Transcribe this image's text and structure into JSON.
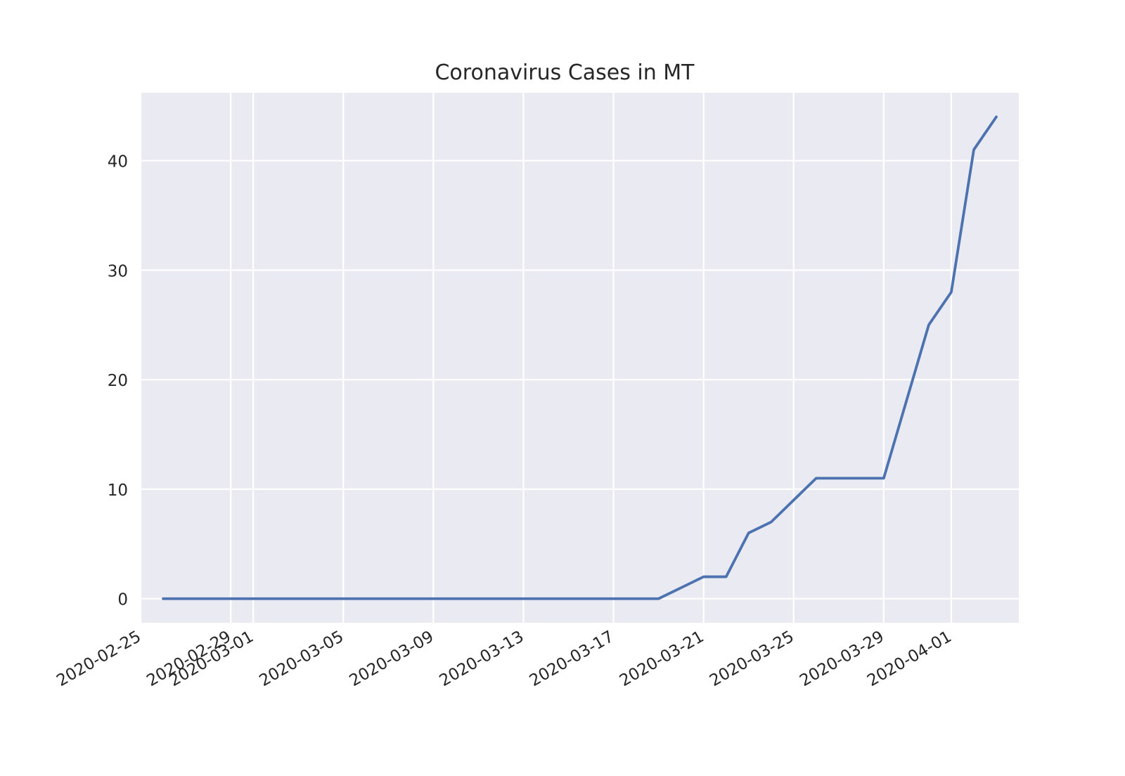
{
  "chart_data": {
    "type": "line",
    "title": "Coronavirus Cases in MT",
    "xlabel": "",
    "ylabel": "",
    "x_axis_type": "date",
    "xlim": [
      "2020-02-25",
      "2020-04-04"
    ],
    "ylim": [
      -2.2,
      46.2
    ],
    "x_ticks": [
      "2020-02-25",
      "2020-02-29",
      "2020-03-01",
      "2020-03-05",
      "2020-03-09",
      "2020-03-13",
      "2020-03-17",
      "2020-03-21",
      "2020-03-25",
      "2020-03-29",
      "2020-04-01"
    ],
    "y_ticks": [
      0,
      10,
      20,
      30,
      40
    ],
    "grid": true,
    "colors": {
      "plot_background": "#eaeaf2",
      "grid": "#ffffff",
      "line": "#4c72b0"
    },
    "series": [
      {
        "x": [
          "2020-02-26",
          "2020-02-27",
          "2020-02-28",
          "2020-02-29",
          "2020-03-01",
          "2020-03-02",
          "2020-03-03",
          "2020-03-04",
          "2020-03-05",
          "2020-03-06",
          "2020-03-07",
          "2020-03-08",
          "2020-03-09",
          "2020-03-10",
          "2020-03-11",
          "2020-03-12",
          "2020-03-13",
          "2020-03-14",
          "2020-03-15",
          "2020-03-16",
          "2020-03-17",
          "2020-03-18",
          "2020-03-19",
          "2020-03-20",
          "2020-03-21",
          "2020-03-22",
          "2020-03-23",
          "2020-03-24",
          "2020-03-25",
          "2020-03-26",
          "2020-03-27",
          "2020-03-28",
          "2020-03-29",
          "2020-03-30",
          "2020-03-31",
          "2020-04-01",
          "2020-04-02",
          "2020-04-03"
        ],
        "values": [
          0,
          0,
          0,
          0,
          0,
          0,
          0,
          0,
          0,
          0,
          0,
          0,
          0,
          0,
          0,
          0,
          0,
          0,
          0,
          0,
          0,
          0,
          0,
          1,
          2,
          2,
          6,
          7,
          9,
          11,
          11,
          11,
          11,
          18,
          25,
          28,
          41,
          44
        ]
      }
    ]
  }
}
